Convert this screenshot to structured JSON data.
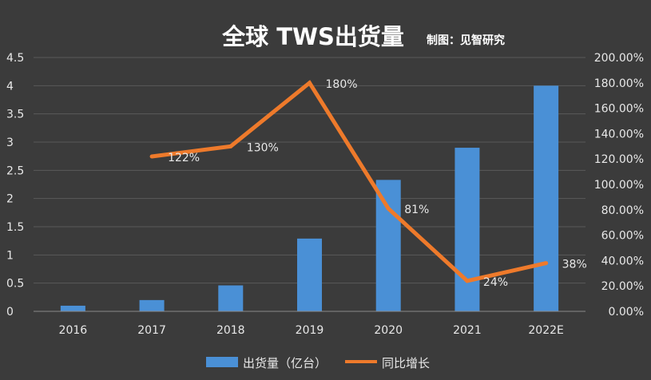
{
  "chart_data": {
    "type": "bar+line",
    "title": "全球 TWS出货量",
    "subtitle": "制图：见智研究",
    "categories": [
      "2016",
      "2017",
      "2018",
      "2019",
      "2020",
      "2021",
      "2022E"
    ],
    "series": [
      {
        "name": "出货量（亿台）",
        "type": "bar",
        "axis": "left",
        "values": [
          0.1,
          0.2,
          0.46,
          1.29,
          2.33,
          2.9,
          4.0
        ]
      },
      {
        "name": "同比增长",
        "type": "line",
        "axis": "right",
        "values": [
          null,
          122,
          130,
          180,
          81,
          24,
          38
        ],
        "data_labels": [
          "",
          "122%",
          "130%",
          "180%",
          "81%",
          "24%",
          "38%"
        ]
      }
    ],
    "y_left": {
      "ylim": [
        0,
        4.5
      ],
      "ticks": [
        0,
        0.5,
        1,
        1.5,
        2,
        2.5,
        3,
        3.5,
        4,
        4.5
      ],
      "tick_labels": [
        "0",
        "0.5",
        "1",
        "1.5",
        "2",
        "2.5",
        "3",
        "3.5",
        "4",
        "4.5"
      ]
    },
    "y_right": {
      "ylim": [
        0,
        200
      ],
      "ticks": [
        0,
        20,
        40,
        60,
        80,
        100,
        120,
        140,
        160,
        180,
        200
      ],
      "tick_labels": [
        "0.00%",
        "20.00%",
        "40.00%",
        "60.00%",
        "80.00%",
        "100.00%",
        "120.00%",
        "140.00%",
        "160.00%",
        "180.00%",
        "200.00%"
      ]
    },
    "grid": true,
    "legend_position": "bottom",
    "colors": {
      "background": "#3b3b3b",
      "bar": "#4a90d6",
      "line": "#ee7a2b",
      "grid": "#5a5a5a",
      "text": "#e8e8e8",
      "title": "#ffffff"
    }
  }
}
